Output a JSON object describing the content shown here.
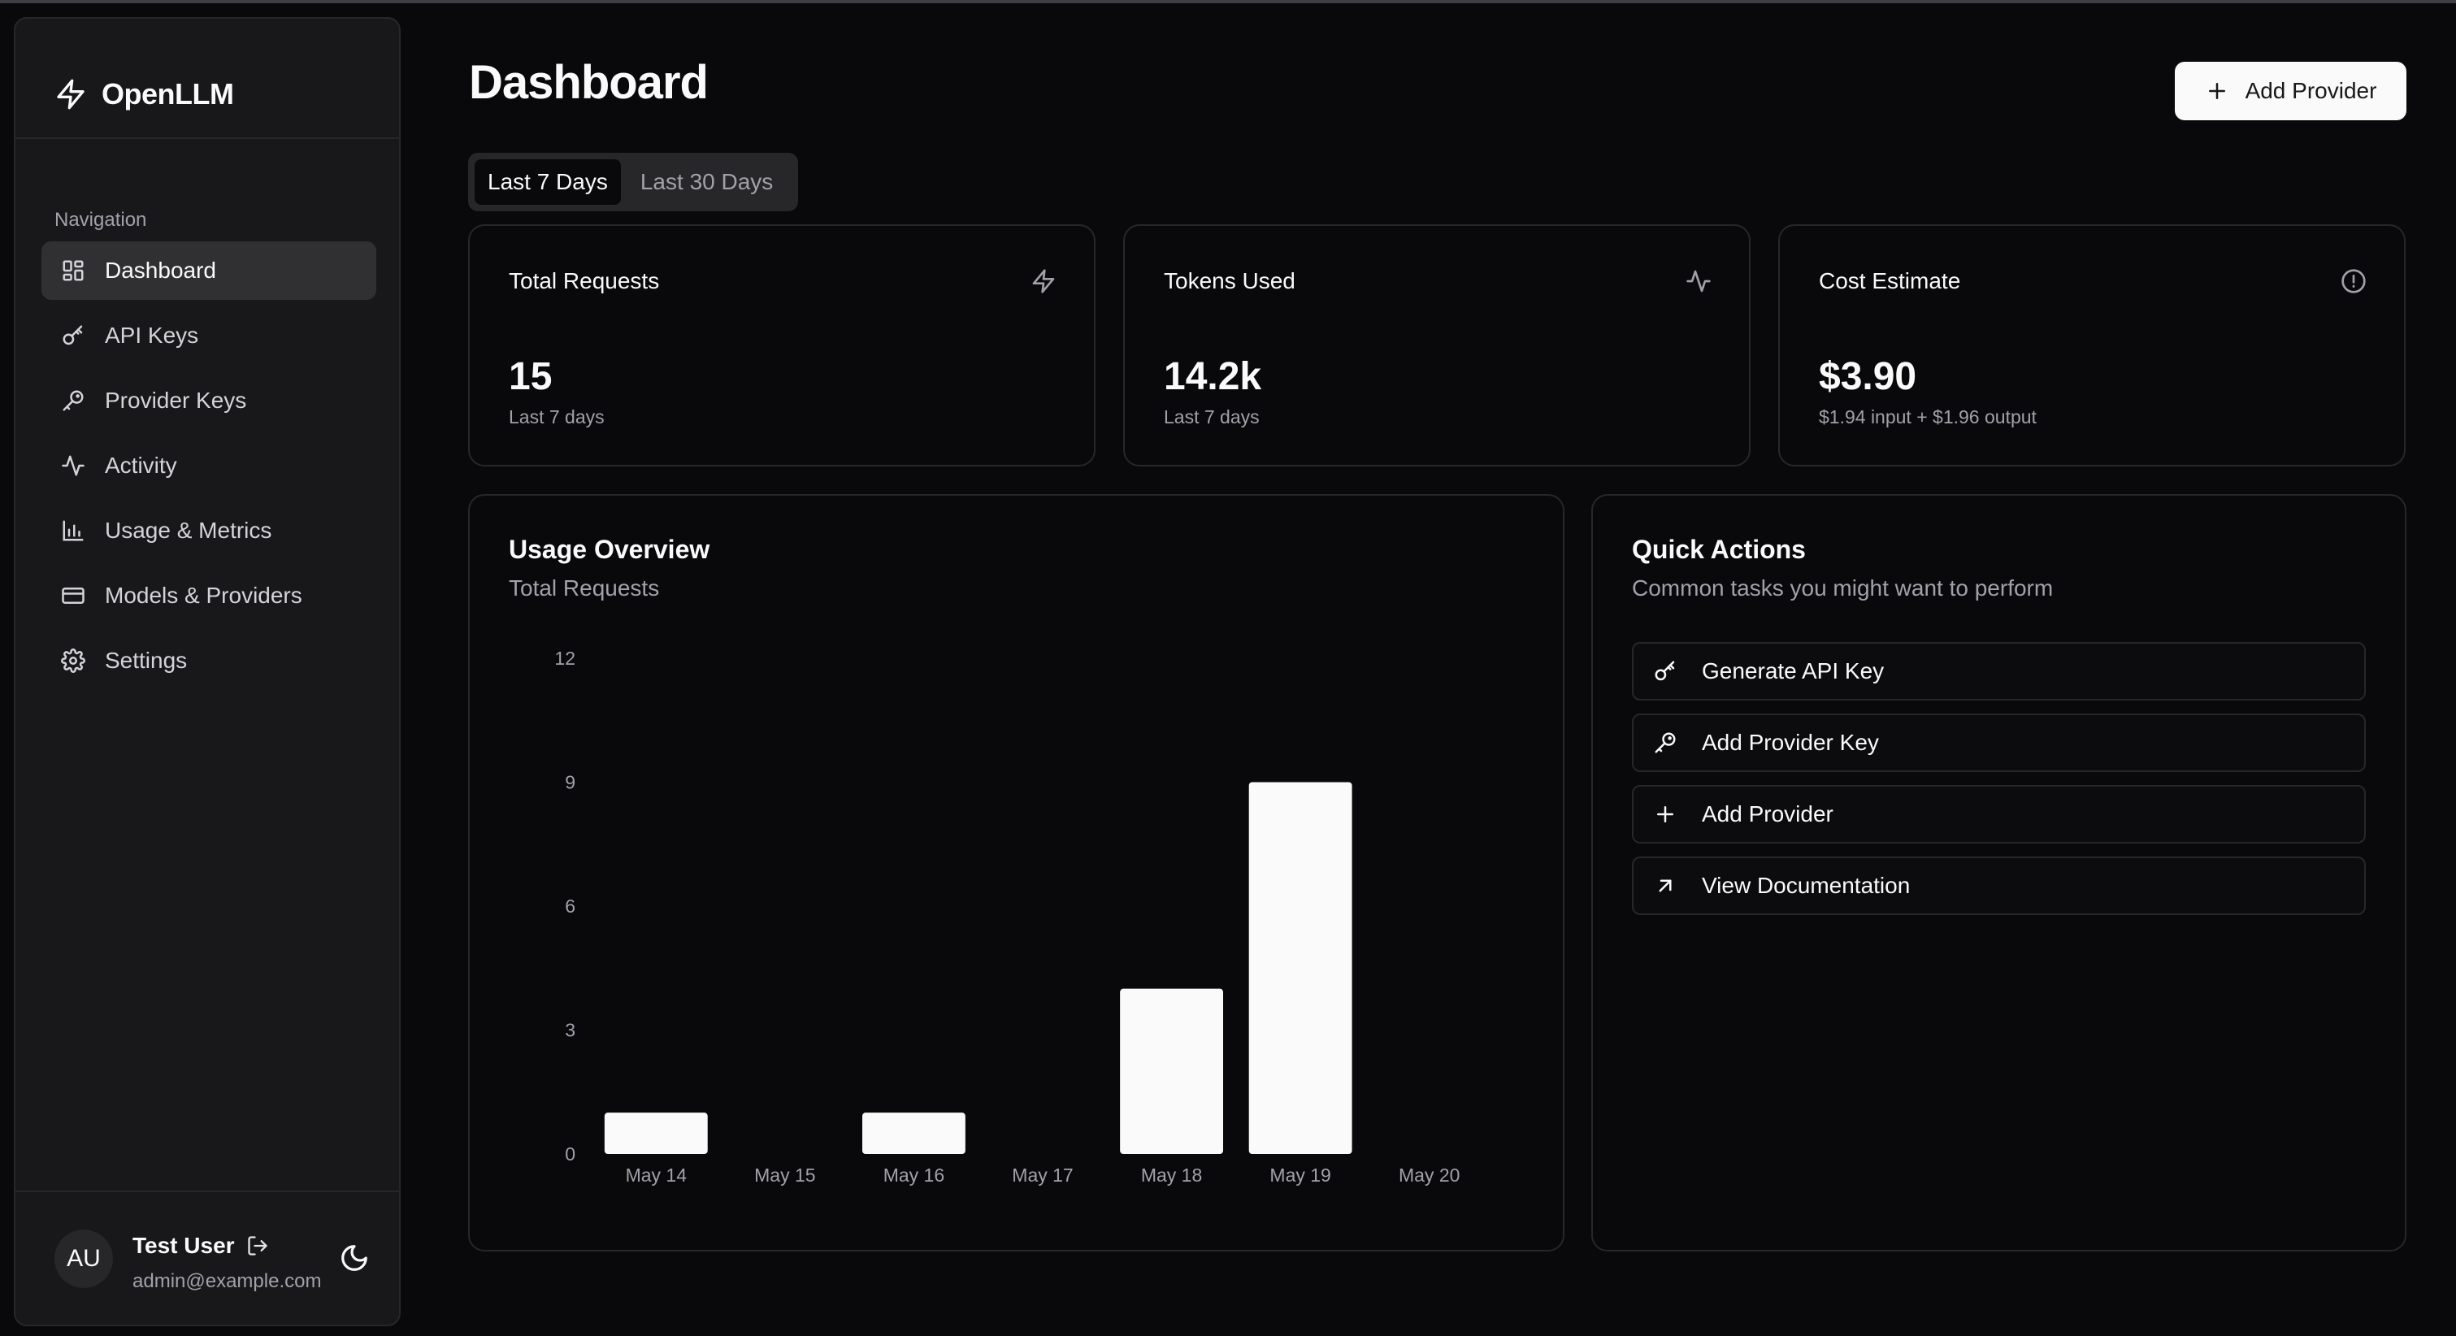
{
  "app": {
    "name": "OpenLLM"
  },
  "sidebar": {
    "section_label": "Navigation",
    "items": [
      {
        "label": "Dashboard",
        "icon": "dashboard-grid-icon",
        "active": true
      },
      {
        "label": "API Keys",
        "icon": "key-icon"
      },
      {
        "label": "Provider Keys",
        "icon": "key-round-icon"
      },
      {
        "label": "Activity",
        "icon": "activity-icon"
      },
      {
        "label": "Usage & Metrics",
        "icon": "bar-chart-icon"
      },
      {
        "label": "Models & Providers",
        "icon": "credit-card-icon"
      },
      {
        "label": "Settings",
        "icon": "gear-icon"
      }
    ]
  },
  "user": {
    "initials": "AU",
    "name": "Test User",
    "email": "admin@example.com"
  },
  "header": {
    "title": "Dashboard",
    "add_provider_label": "Add Provider"
  },
  "tabs": [
    {
      "label": "Last 7 Days",
      "active": true
    },
    {
      "label": "Last 30 Days",
      "active": false
    }
  ],
  "stats": [
    {
      "title": "Total Requests",
      "value": "15",
      "sub": "Last 7 days",
      "icon": "zap-icon"
    },
    {
      "title": "Tokens Used",
      "value": "14.2k",
      "sub": "Last 7 days",
      "icon": "activity-icon"
    },
    {
      "title": "Cost Estimate",
      "value": "$3.90",
      "sub": "$1.94 input + $1.96 output",
      "icon": "info-circle-icon"
    }
  ],
  "usage": {
    "title": "Usage Overview",
    "subtitle": "Total Requests"
  },
  "chart_data": {
    "type": "bar",
    "categories": [
      "May 14",
      "May 15",
      "May 16",
      "May 17",
      "May 18",
      "May 19",
      "May 20"
    ],
    "values": [
      1,
      0,
      1,
      0,
      4,
      9,
      0
    ],
    "yticks": [
      0,
      3,
      6,
      9,
      12
    ],
    "ylim": [
      0,
      12
    ],
    "xlabel": "",
    "ylabel": "",
    "grid": false,
    "bar_color": "#fafafa"
  },
  "quick_actions": {
    "title": "Quick Actions",
    "subtitle": "Common tasks you might want to perform",
    "items": [
      {
        "label": "Generate API Key",
        "icon": "key-icon"
      },
      {
        "label": "Add Provider Key",
        "icon": "key-round-icon"
      },
      {
        "label": "Add Provider",
        "icon": "plus-icon"
      },
      {
        "label": "View Documentation",
        "icon": "arrow-up-right-icon"
      }
    ]
  },
  "colors": {
    "background": "#09090b",
    "surface": "#18181b",
    "border": "#27272a",
    "muted_text": "#a1a1aa",
    "accent": "#fafafa"
  }
}
